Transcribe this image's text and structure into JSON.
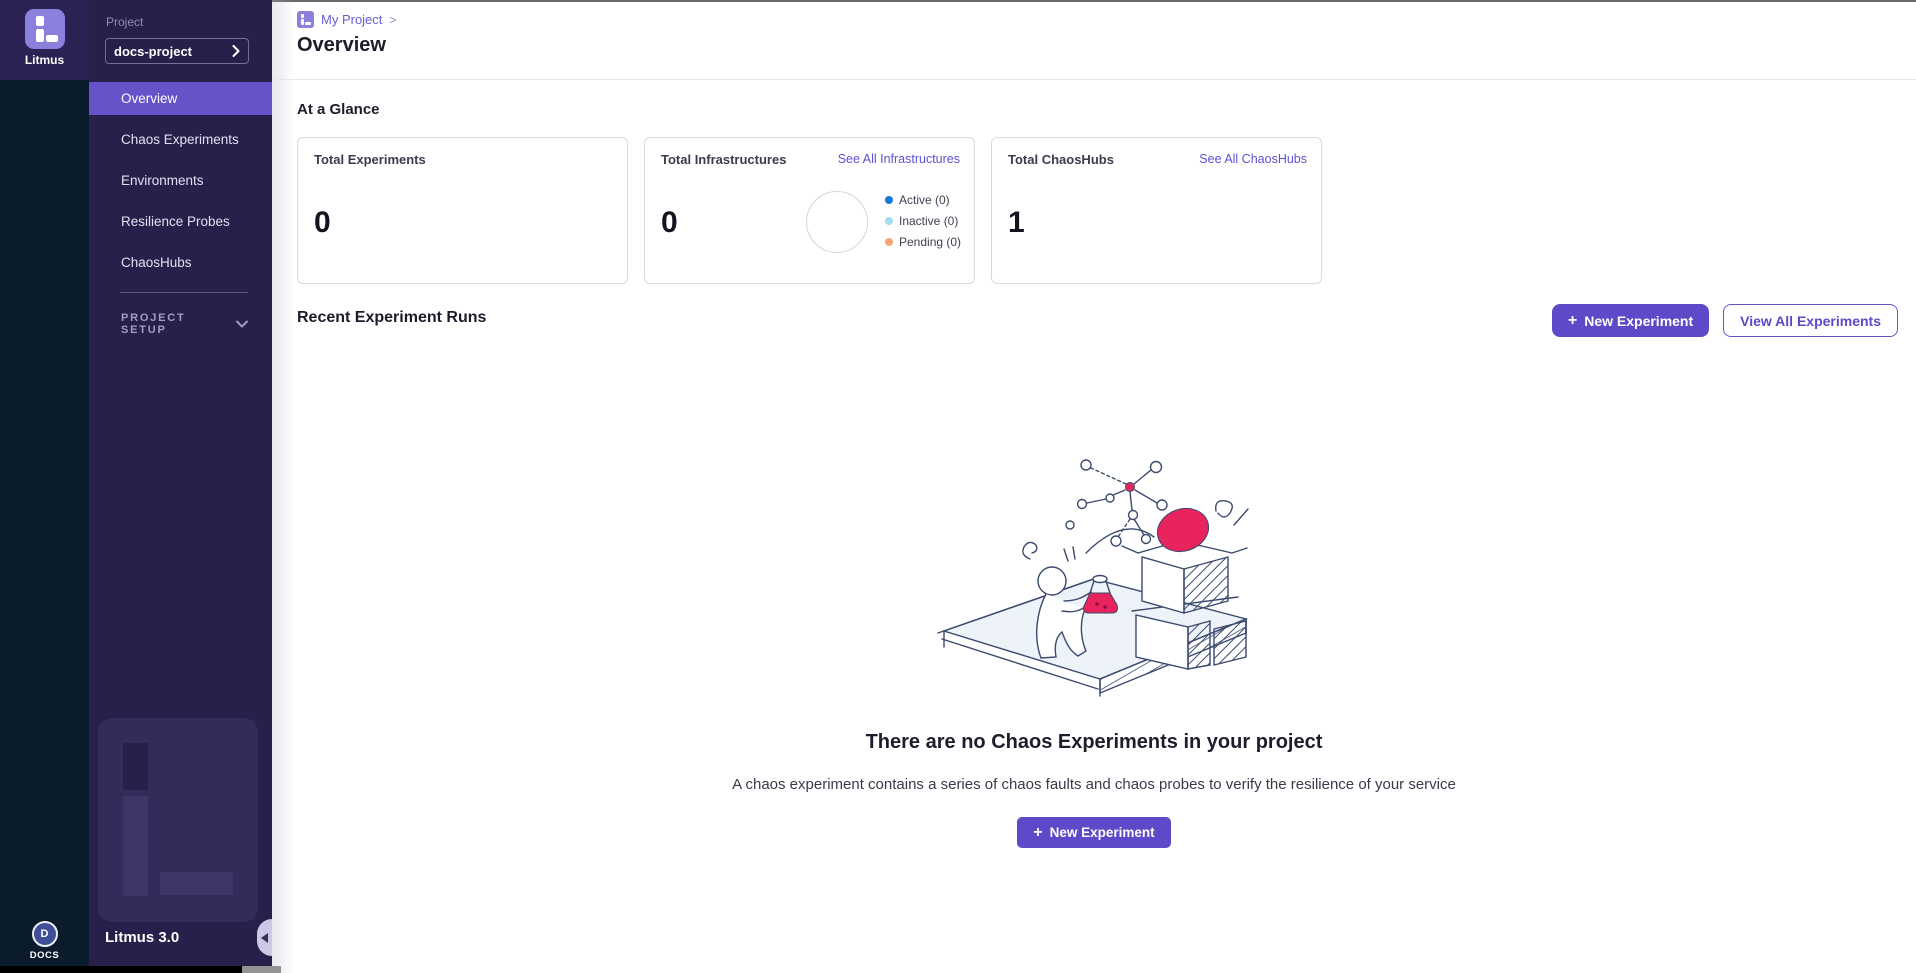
{
  "colors": {
    "primary_purple": "#5e49c8",
    "selected_nav": "#6553c9",
    "link_purple": "#5c52d6",
    "sidebar_bg": "#281f4b",
    "rail_bg": "#0a1b2c",
    "accent_pink": "#e8245f",
    "legend_active": "#1578d6",
    "legend_inactive": "#a6ddf2",
    "legend_pending": "#f5a572"
  },
  "rail": {
    "logo_label": "Litmus",
    "docs_initial": "D",
    "docs_label": "DOCS"
  },
  "sidebar": {
    "project_label": "Project",
    "project_value": "docs-project",
    "items": [
      {
        "label": "Overview",
        "active": true
      },
      {
        "label": "Chaos Experiments",
        "active": false
      },
      {
        "label": "Environments",
        "active": false
      },
      {
        "label": "Resilience Probes",
        "active": false
      },
      {
        "label": "ChaosHubs",
        "active": false
      }
    ],
    "setup_label": "PROJECT SETUP",
    "version": "Litmus 3.0"
  },
  "breadcrumb": {
    "project": "My Project",
    "chevron": ">"
  },
  "page": {
    "title": "Overview",
    "glance_heading": "At a Glance",
    "recent_heading": "Recent Experiment Runs"
  },
  "cards": [
    {
      "title": "Total Experiments",
      "value": "0"
    },
    {
      "title": "Total Infrastructures",
      "value": "0",
      "link": "See All Infrastructures",
      "legend": [
        {
          "label": "Active (0)",
          "color": "#1578d6"
        },
        {
          "label": "Inactive (0)",
          "color": "#a6ddf2"
        },
        {
          "label": "Pending (0)",
          "color": "#f5a572"
        }
      ]
    },
    {
      "title": "Total ChaosHubs",
      "value": "1",
      "link": "See All ChaosHubs"
    }
  ],
  "actions": {
    "plus": "+",
    "new_experiment_label": "New Experiment",
    "view_all_label": "View All Experiments"
  },
  "empty_state": {
    "title": "There are no Chaos Experiments in your project",
    "subtitle": "A chaos experiment contains a series of chaos faults and chaos probes to verify the resilience of your service",
    "cta_plus": "+",
    "cta_label": "New Experiment"
  }
}
